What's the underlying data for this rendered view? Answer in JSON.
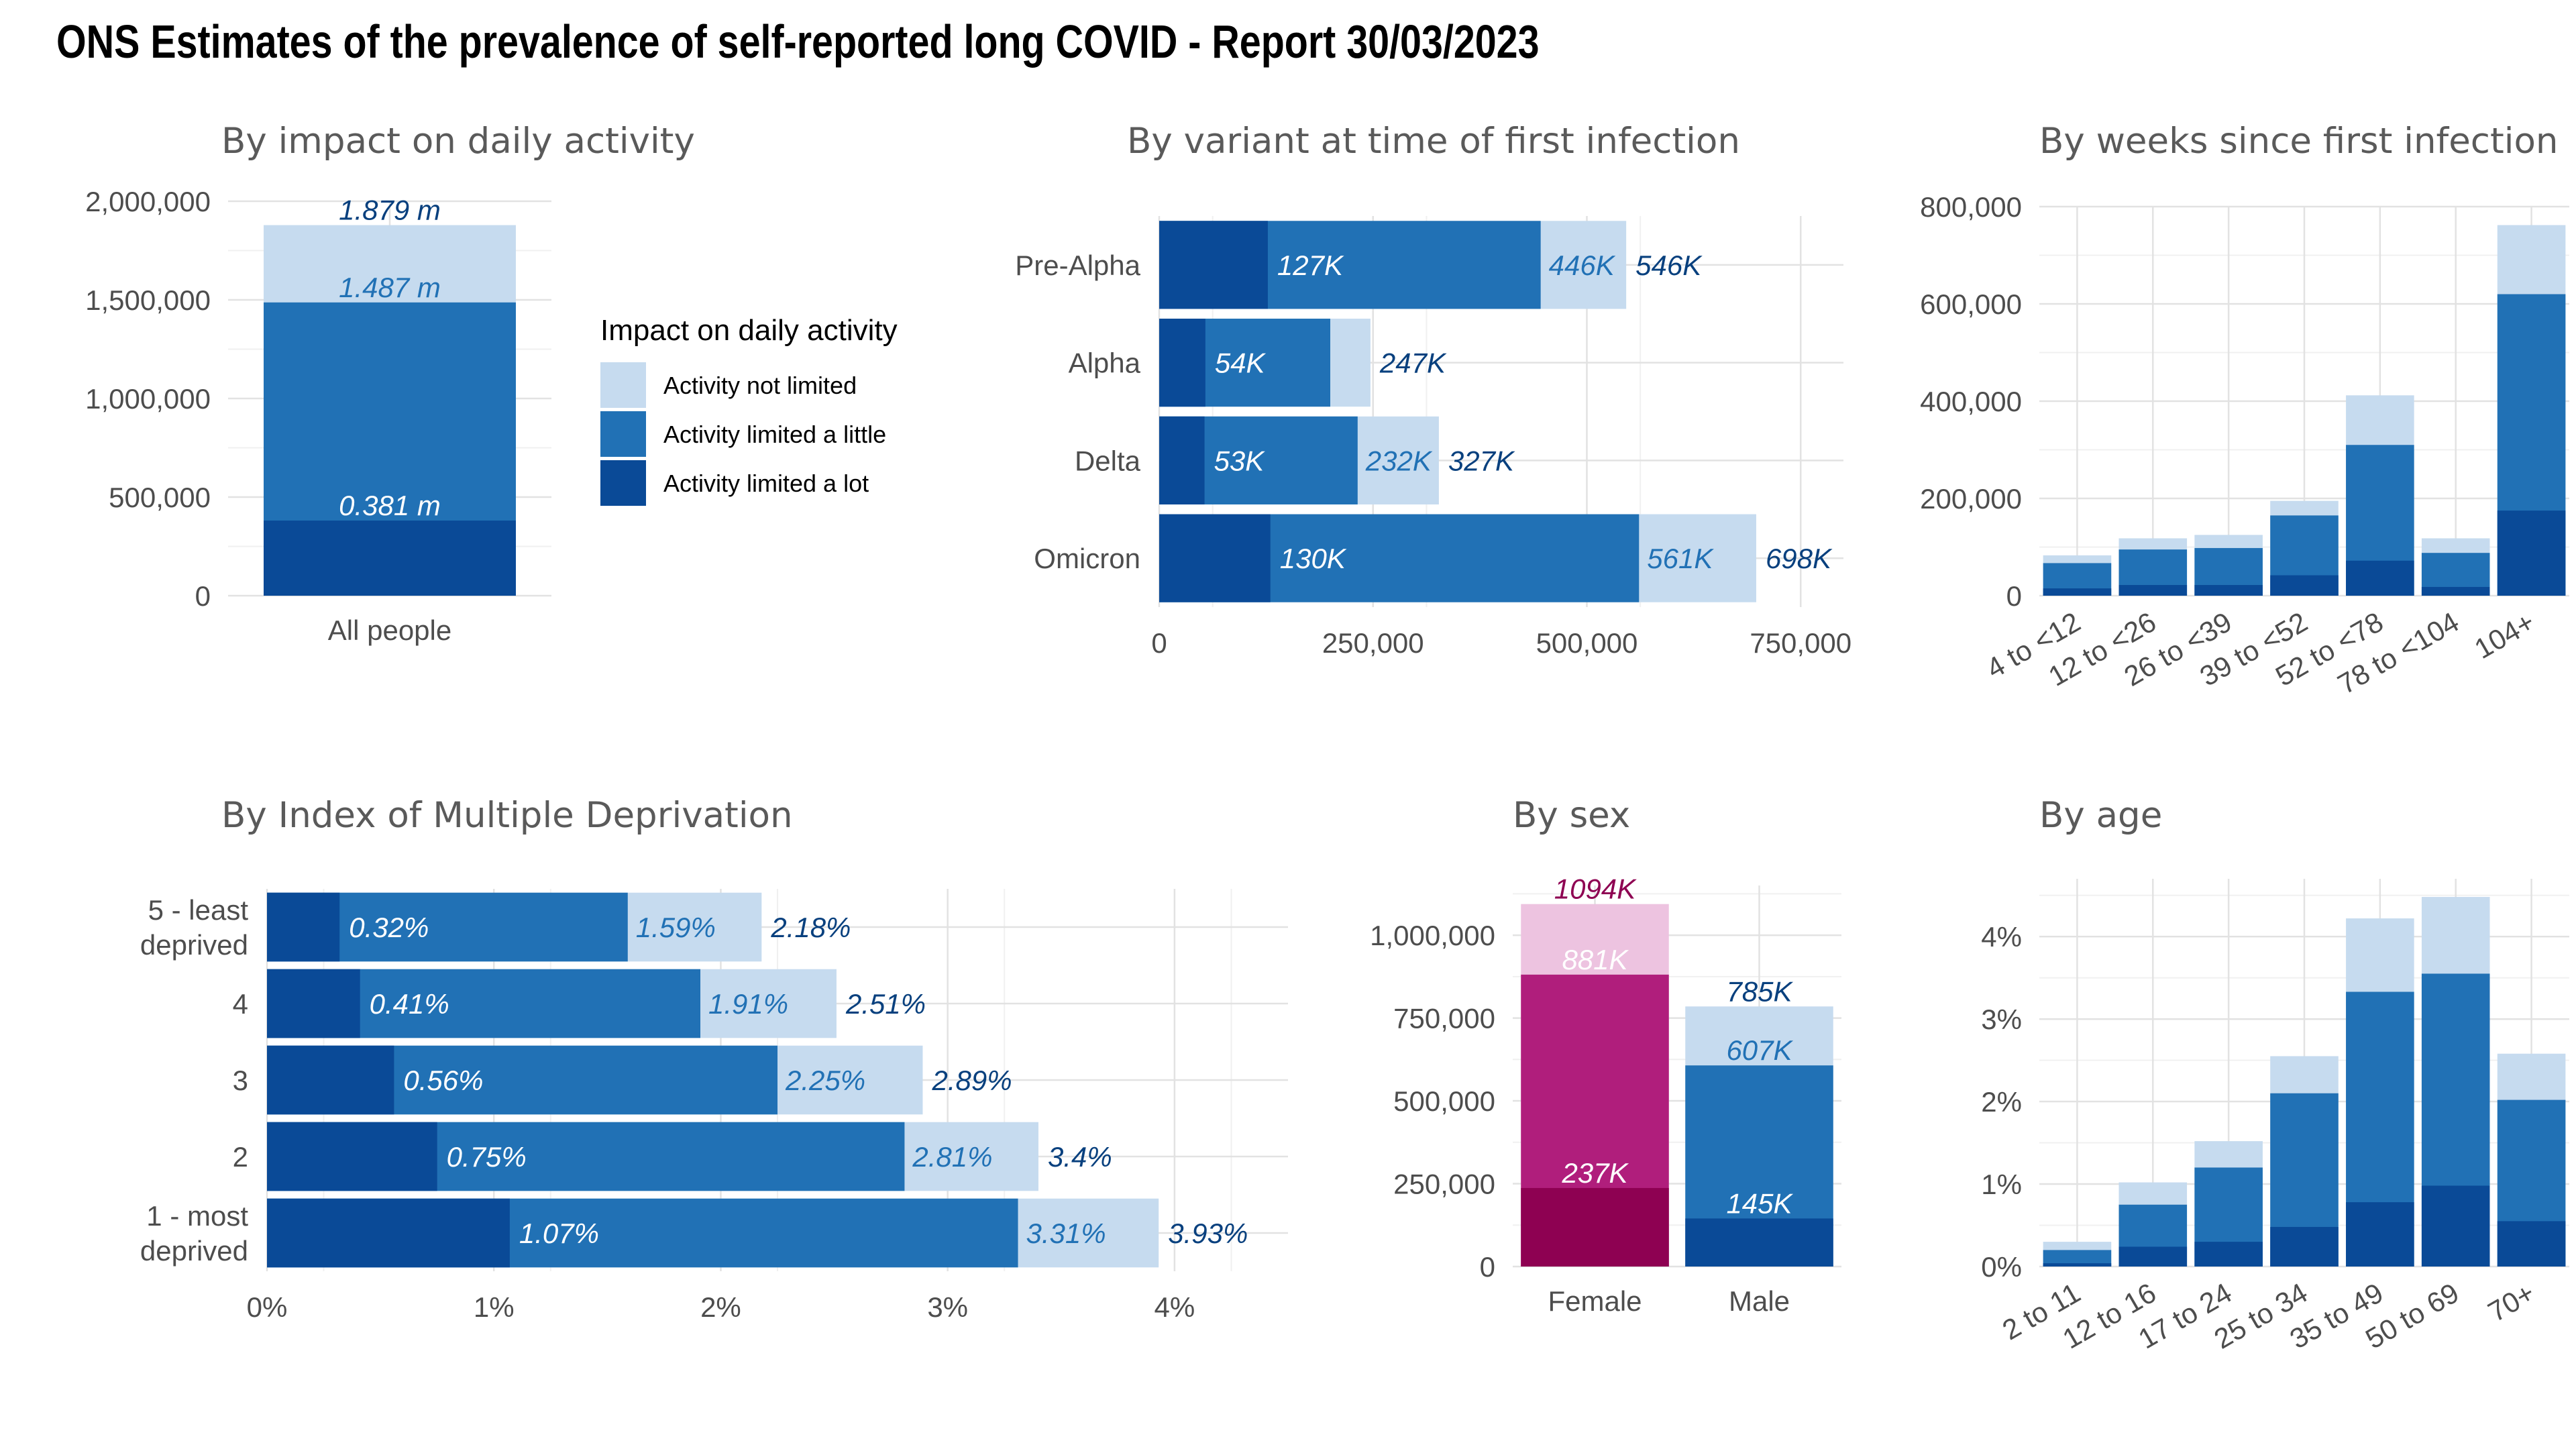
{
  "title": "ONS Estimates of the prevalence of self-reported long COVID - Report 30/03/2023",
  "colors": {
    "blue_lot": "#0a4a97",
    "blue_little": "#2171b5",
    "blue_not": "#c6dbef",
    "pink_lot": "#8e0152",
    "pink_little": "#b01e7c",
    "pink_not": "#edc3e0",
    "label_dark_blue": "#08407e",
    "label_mid_blue": "#2171b5",
    "label_white": "#ffffff",
    "label_pink": "#8e0152"
  },
  "chart_data": [
    {
      "id": "impact",
      "type": "bar",
      "title": "By impact on daily activity",
      "categories": [
        "All people"
      ],
      "series": [
        {
          "name": "Activity limited a lot",
          "values": [
            381000
          ],
          "label": [
            "0.381 m"
          ]
        },
        {
          "name": "Activity limited a little",
          "values": [
            1487000
          ],
          "label": [
            "1.487 m"
          ]
        },
        {
          "name": "Activity not limited",
          "values": [
            1879000
          ],
          "label": [
            "1.879 m"
          ]
        }
      ],
      "yticks": [
        "0",
        "500,000",
        "1,000,000",
        "1,500,000",
        "2,000,000"
      ],
      "ylim": [
        0,
        2000000
      ],
      "legend": {
        "title": "Impact on daily activity",
        "entries": [
          "Activity not limited",
          "Activity limited a little",
          "Activity limited a lot"
        ],
        "position": "right"
      },
      "grid": true
    },
    {
      "id": "variant",
      "type": "bar",
      "orientation": "horizontal",
      "title": "By variant at time of first infection",
      "categories": [
        "Pre-Alpha",
        "Alpha",
        "Delta",
        "Omicron"
      ],
      "series": [
        {
          "name": "Activity limited a lot",
          "values": [
            127000,
            54000,
            53000,
            130000
          ],
          "labels": [
            "127K",
            "54K",
            "53K",
            "130K"
          ]
        },
        {
          "name": "Activity limited a little",
          "values": [
            446000,
            200000,
            232000,
            561000
          ],
          "labels": [
            "446K",
            "",
            "232K",
            "561K"
          ]
        },
        {
          "name": "Activity not limited",
          "values": [
            546000,
            247000,
            327000,
            698000
          ],
          "labels": [
            "546K",
            "247K",
            "327K",
            "698K"
          ]
        }
      ],
      "xticks": [
        "0",
        "250,000",
        "500,000",
        "750,000"
      ],
      "xlim": [
        0,
        800000
      ],
      "grid": true
    },
    {
      "id": "weeks",
      "type": "bar",
      "title": "By weeks since first infection",
      "categories": [
        "4 to <12",
        "12 to <26",
        "26 to <39",
        "39 to <52",
        "52 to <78",
        "78 to <104",
        "104+"
      ],
      "series": [
        {
          "name": "Activity limited a lot",
          "values": [
            15000,
            22000,
            22000,
            42000,
            72000,
            18000,
            175000
          ]
        },
        {
          "name": "Activity limited a little",
          "values": [
            67000,
            95000,
            98000,
            165000,
            310000,
            88000,
            620000
          ]
        },
        {
          "name": "Activity not limited",
          "values": [
            83000,
            118000,
            125000,
            195000,
            412000,
            118000,
            762000
          ]
        }
      ],
      "yticks": [
        "0",
        "200,000",
        "400,000",
        "600,000",
        "800,000"
      ],
      "ylim": [
        0,
        800000
      ],
      "grid": true
    },
    {
      "id": "imd",
      "type": "bar",
      "orientation": "horizontal",
      "title": "By Index of Multiple Deprivation",
      "categories": [
        "5 - least deprived",
        "4",
        "3",
        "2",
        "1 - most deprived"
      ],
      "category_lines": [
        [
          "5 - least",
          "deprived"
        ],
        [
          "4"
        ],
        [
          "3"
        ],
        [
          "2"
        ],
        [
          "1 - most",
          "deprived"
        ]
      ],
      "series": [
        {
          "name": "Activity limited a lot",
          "values": [
            0.32,
            0.41,
            0.56,
            0.75,
            1.07
          ],
          "labels": [
            "0.32%",
            "0.41%",
            "0.56%",
            "0.75%",
            "1.07%"
          ]
        },
        {
          "name": "Activity limited a little",
          "values": [
            1.59,
            1.91,
            2.25,
            2.81,
            3.31
          ],
          "labels": [
            "1.59%",
            "1.91%",
            "2.25%",
            "2.81%",
            "3.31%"
          ]
        },
        {
          "name": "Activity not limited",
          "values": [
            2.18,
            2.51,
            2.89,
            3.4,
            3.93
          ],
          "labels": [
            "2.18%",
            "2.51%",
            "2.89%",
            "3.4%",
            "3.93%"
          ]
        }
      ],
      "xticks": [
        "0%",
        "1%",
        "2%",
        "3%",
        "4%"
      ],
      "xlim": [
        0,
        4.5
      ],
      "grid": true
    },
    {
      "id": "sex",
      "type": "bar",
      "title": "By sex",
      "categories": [
        "Female",
        "Male"
      ],
      "series": [
        {
          "name": "Activity limited a lot",
          "values": [
            237000,
            145000
          ],
          "labels": [
            "237K",
            "145K"
          ]
        },
        {
          "name": "Activity limited a little",
          "values": [
            881000,
            607000
          ],
          "labels": [
            "881K",
            "607K"
          ]
        },
        {
          "name": "Activity not limited",
          "values": [
            1094000,
            785000
          ],
          "labels": [
            "1094K",
            "785K"
          ]
        }
      ],
      "yticks": [
        "0",
        "250,000",
        "500,000",
        "750,000",
        "1,000,000"
      ],
      "ylim": [
        0,
        1150000
      ],
      "grid": true
    },
    {
      "id": "age",
      "type": "bar",
      "title": "By age",
      "categories": [
        "2 to 11",
        "12 to 16",
        "17 to 24",
        "25 to 34",
        "35 to 49",
        "50 to 69",
        "70+"
      ],
      "series": [
        {
          "name": "Activity limited a lot",
          "values": [
            0.04,
            0.24,
            0.3,
            0.48,
            0.78,
            0.98,
            0.55
          ]
        },
        {
          "name": "Activity limited a little",
          "values": [
            0.2,
            0.75,
            1.2,
            2.1,
            3.33,
            3.55,
            2.02
          ]
        },
        {
          "name": "Activity not limited",
          "values": [
            0.3,
            1.02,
            1.52,
            2.55,
            4.22,
            4.48,
            2.58
          ]
        }
      ],
      "yticks": [
        "0%",
        "1%",
        "2%",
        "3%",
        "4%"
      ],
      "ylim": [
        0,
        4.7
      ],
      "grid": true
    }
  ]
}
